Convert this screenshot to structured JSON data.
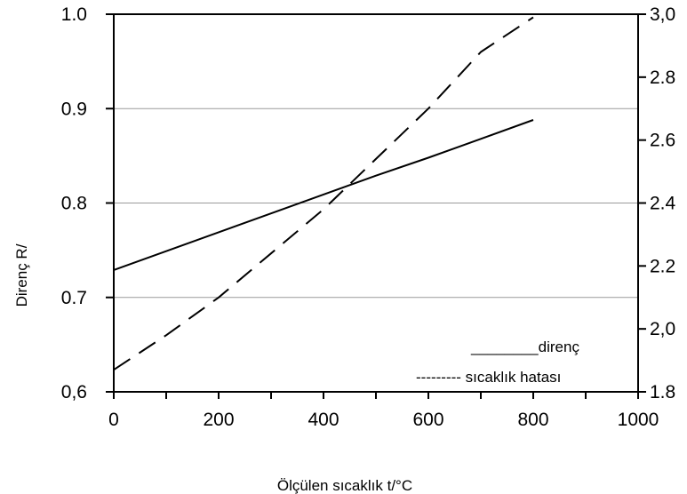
{
  "chart_data": {
    "type": "line",
    "title": "",
    "xlabel": "Ölçülen sıcaklık t/°C",
    "ylabel": "Direnç R/",
    "y2label": "",
    "xlim": [
      0,
      1000
    ],
    "ylim": [
      0.6,
      1.0
    ],
    "y2lim": [
      1.8,
      3.0
    ],
    "x_ticks": [
      "0",
      "200",
      "400",
      "600",
      "800",
      "1000"
    ],
    "y_ticks": [
      "0,6",
      "0.7",
      "0.8",
      "0.9",
      "1.0"
    ],
    "y2_ticks": [
      "1.8",
      "2,0",
      "2.2",
      "2.4",
      "2.6",
      "2.8",
      "3,0"
    ],
    "grid": "horizontal",
    "series": [
      {
        "name": "direnç",
        "axis": "left",
        "style": "solid",
        "color": "#000000",
        "x": [
          0,
          100,
          200,
          300,
          400,
          500,
          600,
          700,
          800
        ],
        "y": [
          0.729,
          0.749,
          0.769,
          0.789,
          0.809,
          0.829,
          0.848,
          0.868,
          0.888
        ]
      },
      {
        "name": "sıcaklık hatası",
        "axis": "right",
        "style": "dashed",
        "color": "#000000",
        "x": [
          0,
          100,
          200,
          300,
          400,
          500,
          600,
          700,
          800
        ],
        "y": [
          1.87,
          1.98,
          2.1,
          2.24,
          2.38,
          2.54,
          2.7,
          2.88,
          2.99
        ]
      }
    ],
    "legend": {
      "placement": "bottom-right",
      "entries": [
        "________direnç",
        "--------- sıcaklık hatası"
      ]
    }
  }
}
